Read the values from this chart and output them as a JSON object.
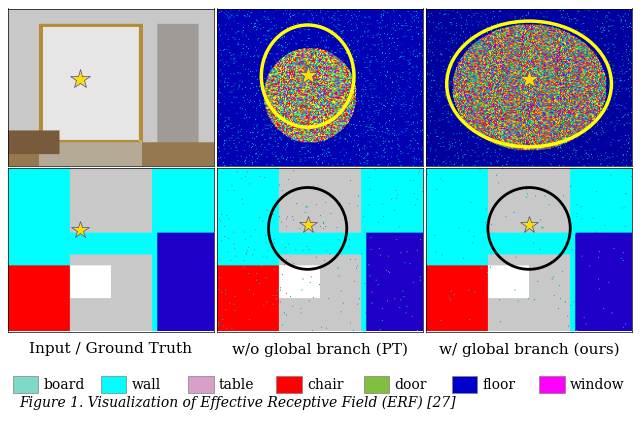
{
  "title_labels": [
    "Input / Ground Truth",
    "w/o global branch (PT)",
    "w/ global branch (ours)"
  ],
  "caption": "Figure 1. Visualization of Effective Receptive Field (ERF) [27]",
  "legend_items": [
    {
      "label": "board",
      "color": "#80d8c8"
    },
    {
      "label": "wall",
      "color": "#00ffff"
    },
    {
      "label": "table",
      "color": "#d8a0c8"
    },
    {
      "label": "chair",
      "color": "#ff0000"
    },
    {
      "label": "door",
      "color": "#80c040"
    },
    {
      "label": "floor",
      "color": "#0000cc"
    },
    {
      "label": "window",
      "color": "#ff00ff"
    }
  ],
  "background_color": "#ffffff",
  "panel_border_color": "#000000",
  "yellow_circle_color": "#ffff00",
  "black_circle_color": "#000000",
  "star_color": "#ffdd00",
  "font_size_labels": 11,
  "font_size_caption": 10,
  "font_size_legend": 10
}
